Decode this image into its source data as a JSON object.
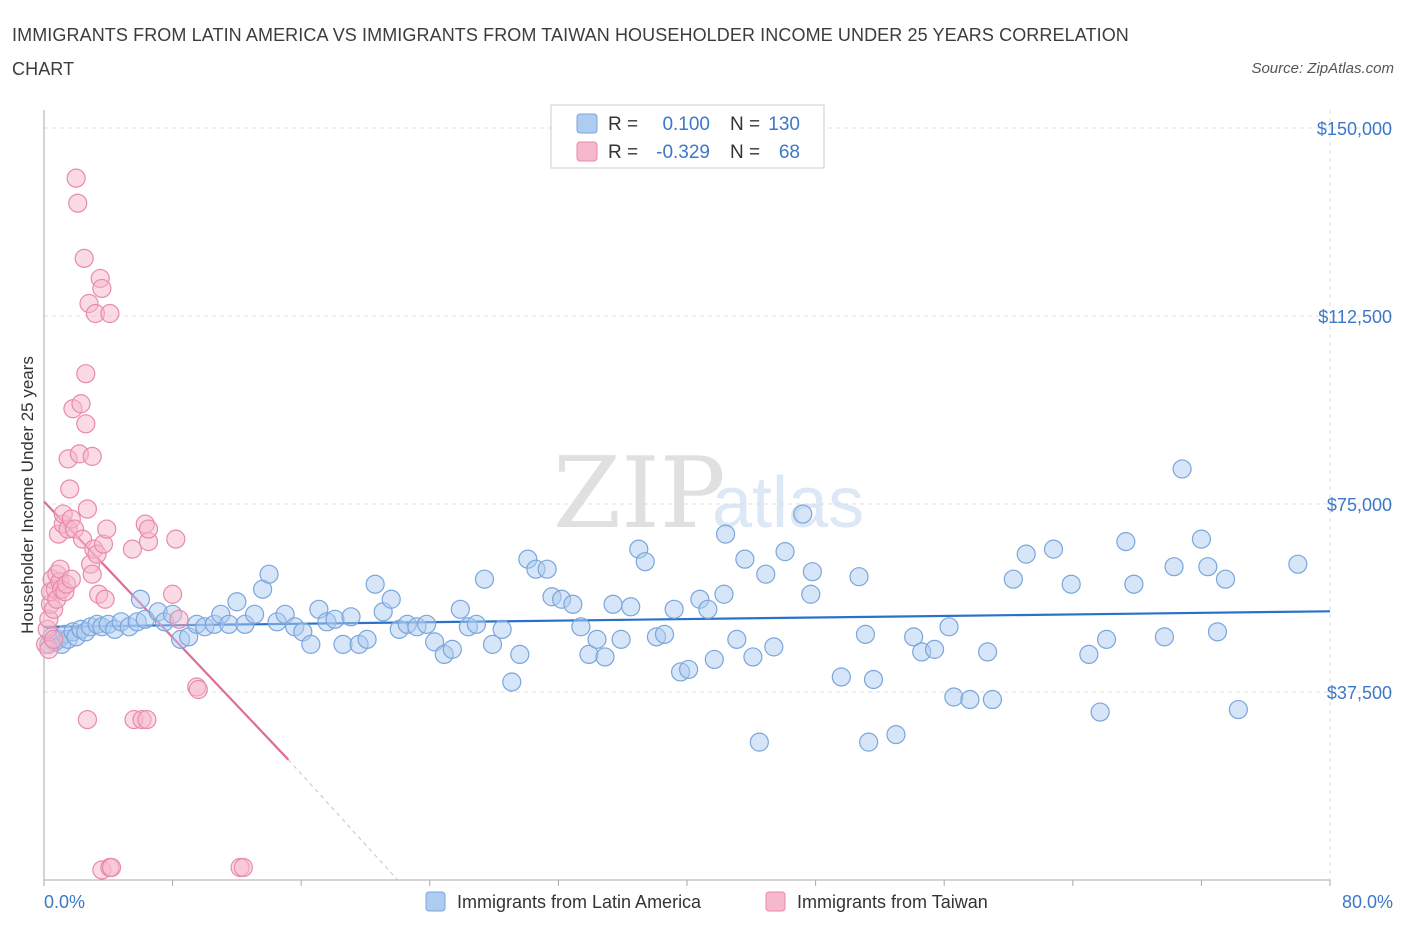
{
  "title": "IMMIGRANTS FROM LATIN AMERICA VS IMMIGRANTS FROM TAIWAN HOUSEHOLDER INCOME UNDER 25 YEARS CORRELATION CHART",
  "source": "Source: ZipAtlas.com",
  "watermark": {
    "zip": "ZIP",
    "atlas": "atlas"
  },
  "colors": {
    "blue_fill": "#aecbf0",
    "blue_stroke": "#7aa6dc",
    "blue_line": "#2a72c8",
    "pink_fill": "#f6b8cc",
    "pink_stroke": "#e88aa8",
    "pink_line": "#e06c96",
    "grid": "#dddddd",
    "tick": "#3c78c8"
  },
  "legend": {
    "rows": [
      {
        "r_label": "R =",
        "r_value": "0.100",
        "n_label": "N =",
        "n_value": "130"
      },
      {
        "r_label": "R =",
        "r_value": "-0.329",
        "n_label": "N =",
        "n_value": "68"
      }
    ]
  },
  "chart_data": {
    "type": "scatter",
    "xlabel": "",
    "ylabel": "Householder Income Under 25 years",
    "xlim": [
      0,
      80
    ],
    "ylim": [
      0,
      152000
    ],
    "x_tick_labels": [
      "0.0%",
      "80.0%"
    ],
    "y_ticks": [
      37500,
      75000,
      112500,
      150000
    ],
    "y_tick_labels": [
      "$37,500",
      "$75,000",
      "$112,500",
      "$150,000"
    ],
    "grid": true,
    "series": [
      {
        "name": "Immigrants from Latin America",
        "color": "blue",
        "trend": {
          "x": [
            0,
            80
          ],
          "y": [
            50500,
            53600
          ]
        },
        "points": [
          [
            0.3,
            47000
          ],
          [
            0.5,
            48500
          ],
          [
            0.7,
            47500
          ],
          [
            0.9,
            48000
          ],
          [
            1.1,
            47000
          ],
          [
            1.3,
            49000
          ],
          [
            1.5,
            48000
          ],
          [
            1.8,
            49500
          ],
          [
            2.0,
            48500
          ],
          [
            2.3,
            50000
          ],
          [
            2.6,
            49500
          ],
          [
            2.9,
            50500
          ],
          [
            3.3,
            51000
          ],
          [
            3.6,
            50500
          ],
          [
            4.0,
            51000
          ],
          [
            4.4,
            50000
          ],
          [
            4.8,
            51500
          ],
          [
            5.3,
            50500
          ],
          [
            5.8,
            51500
          ],
          [
            6.3,
            52000
          ],
          [
            6.0,
            56000
          ],
          [
            7.1,
            53500
          ],
          [
            7.5,
            51500
          ],
          [
            8.0,
            53000
          ],
          [
            8.5,
            48000
          ],
          [
            9.0,
            48500
          ],
          [
            9.5,
            51000
          ],
          [
            10.0,
            50500
          ],
          [
            10.6,
            51000
          ],
          [
            11.0,
            53000
          ],
          [
            11.5,
            51000
          ],
          [
            12.0,
            55500
          ],
          [
            12.5,
            51000
          ],
          [
            13.1,
            53000
          ],
          [
            13.6,
            58000
          ],
          [
            14.0,
            61000
          ],
          [
            14.5,
            51500
          ],
          [
            15.0,
            53000
          ],
          [
            15.6,
            50500
          ],
          [
            16.1,
            49500
          ],
          [
            16.6,
            47000
          ],
          [
            17.1,
            54000
          ],
          [
            17.6,
            51500
          ],
          [
            18.1,
            52000
          ],
          [
            18.6,
            47000
          ],
          [
            19.1,
            52500
          ],
          [
            19.6,
            47000
          ],
          [
            20.1,
            48000
          ],
          [
            20.6,
            59000
          ],
          [
            21.1,
            53500
          ],
          [
            21.6,
            56000
          ],
          [
            22.1,
            50000
          ],
          [
            22.6,
            51000
          ],
          [
            23.2,
            50500
          ],
          [
            23.8,
            51000
          ],
          [
            24.3,
            47500
          ],
          [
            24.9,
            45000
          ],
          [
            25.4,
            46000
          ],
          [
            25.9,
            54000
          ],
          [
            26.4,
            50500
          ],
          [
            26.9,
            51000
          ],
          [
            27.4,
            60000
          ],
          [
            27.9,
            47000
          ],
          [
            28.5,
            50000
          ],
          [
            29.1,
            39500
          ],
          [
            29.6,
            45000
          ],
          [
            30.1,
            64000
          ],
          [
            30.6,
            62000
          ],
          [
            31.3,
            62000
          ],
          [
            31.6,
            56500
          ],
          [
            32.2,
            56000
          ],
          [
            32.9,
            55000
          ],
          [
            33.4,
            50500
          ],
          [
            33.9,
            45000
          ],
          [
            34.4,
            48000
          ],
          [
            34.9,
            44500
          ],
          [
            35.4,
            55000
          ],
          [
            35.9,
            48000
          ],
          [
            36.5,
            54500
          ],
          [
            37.0,
            66000
          ],
          [
            37.4,
            63500
          ],
          [
            38.1,
            48500
          ],
          [
            38.6,
            49000
          ],
          [
            39.2,
            54000
          ],
          [
            39.6,
            41500
          ],
          [
            40.1,
            42000
          ],
          [
            40.8,
            56000
          ],
          [
            41.3,
            54000
          ],
          [
            41.7,
            44000
          ],
          [
            42.3,
            57000
          ],
          [
            42.4,
            69000
          ],
          [
            43.1,
            48000
          ],
          [
            43.6,
            64000
          ],
          [
            44.1,
            44500
          ],
          [
            44.5,
            27500
          ],
          [
            44.9,
            61000
          ],
          [
            45.4,
            46500
          ],
          [
            46.1,
            65500
          ],
          [
            47.2,
            73000
          ],
          [
            47.7,
            57000
          ],
          [
            47.8,
            61500
          ],
          [
            49.6,
            40500
          ],
          [
            50.7,
            60500
          ],
          [
            51.1,
            49000
          ],
          [
            51.3,
            27500
          ],
          [
            51.6,
            40000
          ],
          [
            53.0,
            29000
          ],
          [
            54.1,
            48500
          ],
          [
            54.6,
            45500
          ],
          [
            55.4,
            46000
          ],
          [
            56.3,
            50500
          ],
          [
            56.6,
            36500
          ],
          [
            57.6,
            36000
          ],
          [
            58.7,
            45500
          ],
          [
            59.0,
            36000
          ],
          [
            60.3,
            60000
          ],
          [
            61.1,
            65000
          ],
          [
            62.8,
            66000
          ],
          [
            63.9,
            59000
          ],
          [
            65.0,
            45000
          ],
          [
            65.7,
            33500
          ],
          [
            66.1,
            48000
          ],
          [
            67.3,
            67500
          ],
          [
            67.8,
            59000
          ],
          [
            69.7,
            48500
          ],
          [
            70.3,
            62500
          ],
          [
            70.8,
            82000
          ],
          [
            72.0,
            68000
          ],
          [
            72.4,
            62500
          ],
          [
            73.0,
            49500
          ],
          [
            73.5,
            60000
          ],
          [
            74.3,
            34000
          ],
          [
            78.0,
            63000
          ]
        ]
      },
      {
        "name": "Immigrants from Taiwan",
        "color": "pink",
        "trend": {
          "x": [
            0,
            15.2
          ],
          "y": [
            75500,
            24000
          ],
          "dashed_extension": {
            "x": [
              15.2,
              22
            ],
            "y": [
              24000,
              0
            ]
          }
        },
        "points": [
          [
            0.1,
            47000
          ],
          [
            0.2,
            50000
          ],
          [
            0.3,
            46000
          ],
          [
            0.3,
            52000
          ],
          [
            0.4,
            55000
          ],
          [
            0.4,
            57500
          ],
          [
            0.5,
            60000
          ],
          [
            0.6,
            48000
          ],
          [
            0.6,
            54000
          ],
          [
            0.7,
            58000
          ],
          [
            0.8,
            61000
          ],
          [
            0.8,
            56000
          ],
          [
            0.9,
            69000
          ],
          [
            1.0,
            59500
          ],
          [
            1.0,
            62000
          ],
          [
            1.1,
            58000
          ],
          [
            1.2,
            71000
          ],
          [
            1.2,
            73000
          ],
          [
            1.3,
            57500
          ],
          [
            1.4,
            59000
          ],
          [
            1.5,
            84000
          ],
          [
            1.5,
            70000
          ],
          [
            1.6,
            78000
          ],
          [
            1.7,
            72000
          ],
          [
            1.7,
            60000
          ],
          [
            1.8,
            94000
          ],
          [
            1.9,
            70000
          ],
          [
            2.0,
            140000
          ],
          [
            2.1,
            135000
          ],
          [
            2.2,
            85000
          ],
          [
            2.3,
            95000
          ],
          [
            2.4,
            68000
          ],
          [
            2.5,
            124000
          ],
          [
            2.6,
            91000
          ],
          [
            2.6,
            101000
          ],
          [
            2.7,
            74000
          ],
          [
            2.7,
            32000
          ],
          [
            2.8,
            115000
          ],
          [
            2.9,
            63000
          ],
          [
            3.0,
            61000
          ],
          [
            3.0,
            84500
          ],
          [
            3.1,
            66000
          ],
          [
            3.2,
            113000
          ],
          [
            3.3,
            65000
          ],
          [
            3.4,
            57000
          ],
          [
            3.5,
            120000
          ],
          [
            3.6,
            118000
          ],
          [
            3.7,
            67000
          ],
          [
            3.8,
            56000
          ],
          [
            3.9,
            70000
          ],
          [
            3.6,
            2000
          ],
          [
            4.1,
            113000
          ],
          [
            4.1,
            2500
          ],
          [
            4.2,
            2500
          ],
          [
            5.5,
            66000
          ],
          [
            5.6,
            32000
          ],
          [
            6.1,
            32000
          ],
          [
            6.3,
            71000
          ],
          [
            6.5,
            67500
          ],
          [
            6.5,
            70000
          ],
          [
            6.4,
            32000
          ],
          [
            8.0,
            57000
          ],
          [
            8.2,
            68000
          ],
          [
            8.4,
            52000
          ],
          [
            9.5,
            38500
          ],
          [
            9.6,
            38000
          ],
          [
            12.2,
            2500
          ],
          [
            12.4,
            2500
          ]
        ]
      }
    ]
  },
  "bottom_legend": [
    "Immigrants from Latin America",
    "Immigrants from Taiwan"
  ]
}
